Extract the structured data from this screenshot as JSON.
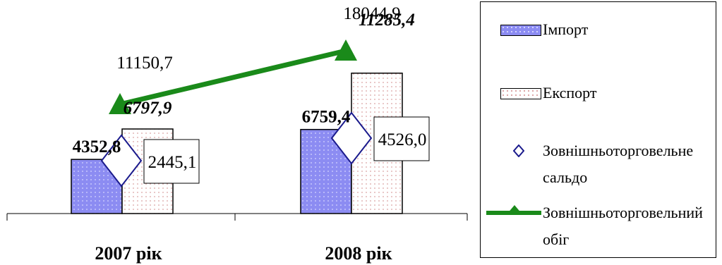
{
  "chart_data": {
    "type": "bar",
    "categories": [
      "2007 рік",
      "2008 рік"
    ],
    "series": [
      {
        "name": "Імпорт",
        "type": "bar",
        "values": [
          4352.8,
          6759.4
        ],
        "labels": [
          "4352,8",
          "6759,4"
        ],
        "color": "#8c8cf2"
      },
      {
        "name": "Експорт",
        "type": "bar",
        "values": [
          6797.9,
          11285.4
        ],
        "labels": [
          "6797,9",
          "11285,4"
        ],
        "color": "#ffffff"
      },
      {
        "name": "Зовнішньоторговельне сальдо",
        "type": "scatter",
        "values": [
          2445.1,
          4526.0
        ],
        "labels": [
          "2445,1",
          "4526,0"
        ],
        "marker": "diamond",
        "color": "#1a1a8c"
      },
      {
        "name": "Зовнішньоторговельний обіг",
        "type": "line",
        "values": [
          11150.7,
          18044.9
        ],
        "labels": [
          "11150,7",
          "18044,9"
        ],
        "marker": "triangle",
        "color": "#1a8a1a"
      }
    ],
    "legend_position": "right",
    "grid": false
  },
  "legend": {
    "import_line1": "Імпорт",
    "export_line1": "Експорт",
    "balance_line1": "Зовнішньоторговельне",
    "balance_line2": "сальдо",
    "turnover_line1": "Зовнішньоторговельний",
    "turnover_line2": "обіг"
  }
}
